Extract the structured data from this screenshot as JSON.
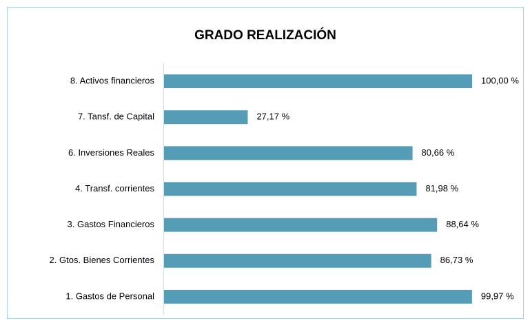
{
  "chart_data": {
    "type": "bar",
    "orientation": "horizontal",
    "title": "GRADO REALIZACIÓN",
    "categories": [
      "8. Activos financieros",
      "7. Tansf. de Capital",
      "6. Inversiones Reales",
      "4. Transf. corrientes",
      "3. Gastos Financieros",
      "2. Gtos. Bienes Corrientes",
      "1. Gastos de Personal"
    ],
    "values": [
      100.0,
      27.17,
      80.66,
      81.98,
      88.64,
      86.73,
      99.97
    ],
    "value_labels": [
      "100,00 %",
      "27,17 %",
      "80,66 %",
      "81,98 %",
      "88,64 %",
      "86,73 %",
      "99,97 %"
    ],
    "color": "#559db7"
  }
}
